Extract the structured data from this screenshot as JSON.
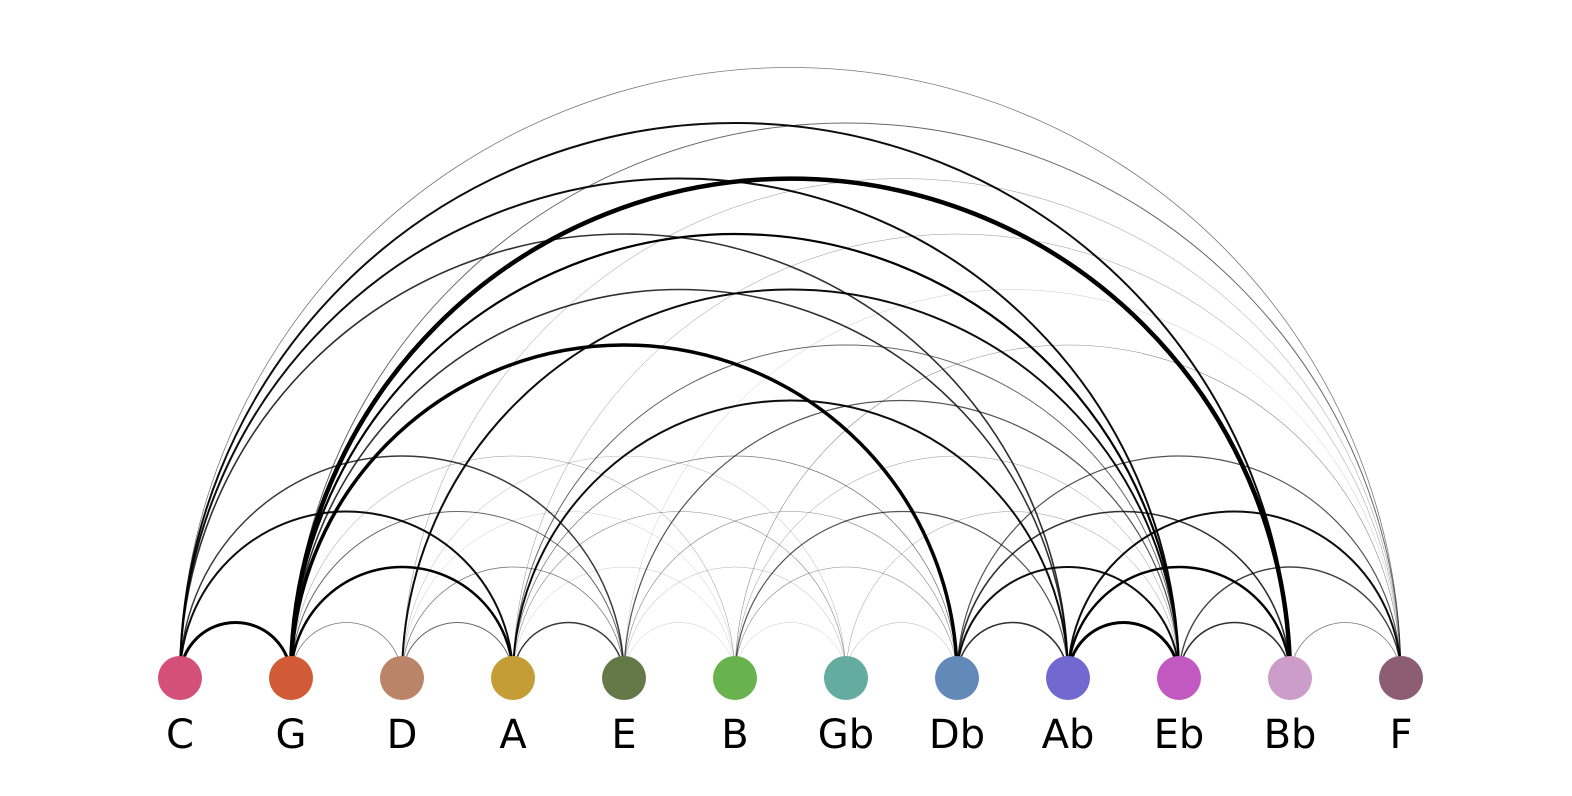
{
  "nodes": [
    {
      "id": "C",
      "label": "C",
      "color": "#d4507a"
    },
    {
      "id": "G",
      "label": "G",
      "color": "#d05b36"
    },
    {
      "id": "D",
      "label": "D",
      "color": "#b98467"
    },
    {
      "id": "A",
      "label": "A",
      "color": "#c49d36"
    },
    {
      "id": "E",
      "label": "E",
      "color": "#657847"
    },
    {
      "id": "B",
      "label": "B",
      "color": "#68b34e"
    },
    {
      "id": "Gb",
      "label": "Gb",
      "color": "#64aca0"
    },
    {
      "id": "Db",
      "label": "Db",
      "color": "#6389b9"
    },
    {
      "id": "Ab",
      "label": "Ab",
      "color": "#7169cf"
    },
    {
      "id": "Eb",
      "label": "Eb",
      "color": "#c259c1"
    },
    {
      "id": "Bb",
      "label": "Bb",
      "color": "#cc9dc8"
    },
    {
      "id": "F",
      "label": "F",
      "color": "#8d5d73"
    }
  ],
  "links": [
    {
      "source": "C",
      "target": "G",
      "weight": 3
    },
    {
      "source": "C",
      "target": "A",
      "weight": 2
    },
    {
      "source": "C",
      "target": "E",
      "weight": 1.5
    },
    {
      "source": "C",
      "target": "Ab",
      "weight": 1.6
    },
    {
      "source": "C",
      "target": "Eb",
      "weight": 2
    },
    {
      "source": "C",
      "target": "Bb",
      "weight": 2
    },
    {
      "source": "C",
      "target": "F",
      "weight": 0.8
    },
    {
      "source": "G",
      "target": "D",
      "weight": 0.8
    },
    {
      "source": "G",
      "target": "A",
      "weight": 2.5
    },
    {
      "source": "G",
      "target": "E",
      "weight": 1
    },
    {
      "source": "G",
      "target": "B",
      "weight": 0.5
    },
    {
      "source": "G",
      "target": "Db",
      "weight": 3.5
    },
    {
      "source": "G",
      "target": "Ab",
      "weight": 1.6
    },
    {
      "source": "G",
      "target": "Eb",
      "weight": 2.2
    },
    {
      "source": "G",
      "target": "Bb",
      "weight": 4.5
    },
    {
      "source": "G",
      "target": "F",
      "weight": 1
    },
    {
      "source": "D",
      "target": "A",
      "weight": 1
    },
    {
      "source": "D",
      "target": "E",
      "weight": 0.8
    },
    {
      "source": "D",
      "target": "B",
      "weight": 0.3
    },
    {
      "source": "D",
      "target": "Gb",
      "weight": 0.4
    },
    {
      "source": "D",
      "target": "Eb",
      "weight": 2
    },
    {
      "source": "D",
      "target": "F",
      "weight": 0.5
    },
    {
      "source": "A",
      "target": "E",
      "weight": 1.5
    },
    {
      "source": "A",
      "target": "B",
      "weight": 0.3
    },
    {
      "source": "A",
      "target": "Gb",
      "weight": 0.6
    },
    {
      "source": "A",
      "target": "Db",
      "weight": 0.8
    },
    {
      "source": "A",
      "target": "Ab",
      "weight": 2
    },
    {
      "source": "A",
      "target": "Eb",
      "weight": 1
    },
    {
      "source": "A",
      "target": "F",
      "weight": 0.5
    },
    {
      "source": "E",
      "target": "B",
      "weight": 0.3
    },
    {
      "source": "E",
      "target": "Gb",
      "weight": 0.4
    },
    {
      "source": "E",
      "target": "Db",
      "weight": 0.6
    },
    {
      "source": "E",
      "target": "Eb",
      "weight": 1.2
    },
    {
      "source": "E",
      "target": "F",
      "weight": 0.3
    },
    {
      "source": "B",
      "target": "Gb",
      "weight": 0.3
    },
    {
      "source": "B",
      "target": "Db",
      "weight": 0.6
    },
    {
      "source": "B",
      "target": "Ab",
      "weight": 1.2
    },
    {
      "source": "B",
      "target": "Eb",
      "weight": 0.5
    },
    {
      "source": "B",
      "target": "F",
      "weight": 0.6
    },
    {
      "source": "Gb",
      "target": "Db",
      "weight": 0.4
    },
    {
      "source": "Gb",
      "target": "Eb",
      "weight": 0.5
    },
    {
      "source": "Db",
      "target": "Ab",
      "weight": 1.6
    },
    {
      "source": "Db",
      "target": "Eb",
      "weight": 2
    },
    {
      "source": "Db",
      "target": "Bb",
      "weight": 1.6
    },
    {
      "source": "Db",
      "target": "F",
      "weight": 1.2
    },
    {
      "source": "Ab",
      "target": "Eb",
      "weight": 3
    },
    {
      "source": "Ab",
      "target": "Bb",
      "weight": 2.4
    },
    {
      "source": "Ab",
      "target": "F",
      "weight": 2
    },
    {
      "source": "Eb",
      "target": "Bb",
      "weight": 1.6
    },
    {
      "source": "Eb",
      "target": "F",
      "weight": 1.4
    },
    {
      "source": "Bb",
      "target": "F",
      "weight": 0.8
    }
  ]
}
